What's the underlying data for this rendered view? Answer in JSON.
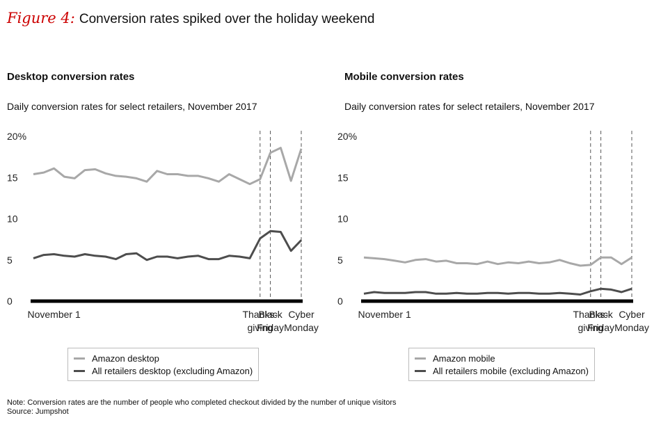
{
  "figure": {
    "label": "Figure 4:",
    "title": "Conversion rates spiked over the holiday weekend"
  },
  "colors": {
    "amazon": "#a8a8a8",
    "all_retailers": "#4d4d4d",
    "axis": "#000000",
    "accent": "#cc0000"
  },
  "chart_data": [
    {
      "type": "line",
      "title": "Desktop conversion rates",
      "subtitle": "Daily conversion rates for select retailers, November 2017",
      "ylim": [
        0,
        20
      ],
      "yticks": [
        "0",
        "5",
        "10",
        "15",
        "20%"
      ],
      "x": [
        1,
        2,
        3,
        4,
        5,
        6,
        7,
        8,
        9,
        10,
        11,
        12,
        13,
        14,
        15,
        16,
        17,
        18,
        19,
        20,
        21,
        22,
        23,
        24,
        25,
        26,
        27
      ],
      "xlim": [
        1,
        27
      ],
      "x_tick_labels": [
        {
          "x": 3,
          "lines": [
            "November 1"
          ]
        },
        {
          "x": 23,
          "lines": [
            "Thanks-",
            "giving"
          ]
        },
        {
          "x": 24,
          "lines": [
            "Black",
            "Friday"
          ]
        },
        {
          "x": 27,
          "lines": [
            "Cyber",
            "Monday"
          ]
        }
      ],
      "markers": [
        23,
        24,
        27
      ],
      "series": [
        {
          "name": "Amazon desktop",
          "color": "amazon",
          "values": [
            15.4,
            15.6,
            16.1,
            15.1,
            14.9,
            15.9,
            16.0,
            15.5,
            15.2,
            15.1,
            14.9,
            14.5,
            15.8,
            15.4,
            15.4,
            15.2,
            15.2,
            14.9,
            14.5,
            15.4,
            14.8,
            14.2,
            14.8,
            18.0,
            18.6,
            14.6,
            18.5
          ]
        },
        {
          "name": "All retailers desktop (excluding Amazon)",
          "color": "all_retailers",
          "values": [
            5.2,
            5.6,
            5.7,
            5.5,
            5.4,
            5.7,
            5.5,
            5.4,
            5.1,
            5.7,
            5.8,
            5.0,
            5.4,
            5.4,
            5.2,
            5.4,
            5.5,
            5.1,
            5.1,
            5.5,
            5.4,
            5.2,
            7.6,
            8.5,
            8.4,
            6.1,
            7.4
          ]
        }
      ]
    },
    {
      "type": "line",
      "title": "Mobile conversion rates",
      "subtitle": "Daily conversion rates for select retailers, November 2017",
      "ylim": [
        0,
        20
      ],
      "yticks": [
        "0",
        "5",
        "10",
        "15",
        "20%"
      ],
      "x": [
        1,
        2,
        3,
        4,
        5,
        6,
        7,
        8,
        9,
        10,
        11,
        12,
        13,
        14,
        15,
        16,
        17,
        18,
        19,
        20,
        21,
        22,
        23,
        24,
        25,
        26,
        27
      ],
      "xlim": [
        1,
        27
      ],
      "x_tick_labels": [
        {
          "x": 3,
          "lines": [
            "November 1"
          ]
        },
        {
          "x": 23,
          "lines": [
            "Thanks-",
            "giving"
          ]
        },
        {
          "x": 24,
          "lines": [
            "Black",
            "Friday"
          ]
        },
        {
          "x": 27,
          "lines": [
            "Cyber",
            "Monday"
          ]
        }
      ],
      "markers": [
        23,
        24,
        27
      ],
      "series": [
        {
          "name": "Amazon mobile",
          "color": "amazon",
          "values": [
            5.3,
            5.2,
            5.1,
            4.9,
            4.7,
            5.0,
            5.1,
            4.8,
            4.9,
            4.6,
            4.6,
            4.5,
            4.8,
            4.5,
            4.7,
            4.6,
            4.8,
            4.6,
            4.7,
            5.0,
            4.6,
            4.3,
            4.4,
            5.3,
            5.3,
            4.5,
            5.3
          ]
        },
        {
          "name": "All retailers mobile (excluding Amazon)",
          "color": "all_retailers",
          "values": [
            0.9,
            1.1,
            1.0,
            1.0,
            1.0,
            1.1,
            1.1,
            0.9,
            0.9,
            1.0,
            0.9,
            0.9,
            1.0,
            1.0,
            0.9,
            1.0,
            1.0,
            0.9,
            0.9,
            1.0,
            0.9,
            0.8,
            1.2,
            1.5,
            1.4,
            1.1,
            1.5
          ]
        }
      ]
    }
  ],
  "note": "Note: Conversion rates are the number of people who completed checkout divided by the number of unique visitors",
  "source": "Source: Jumpshot"
}
